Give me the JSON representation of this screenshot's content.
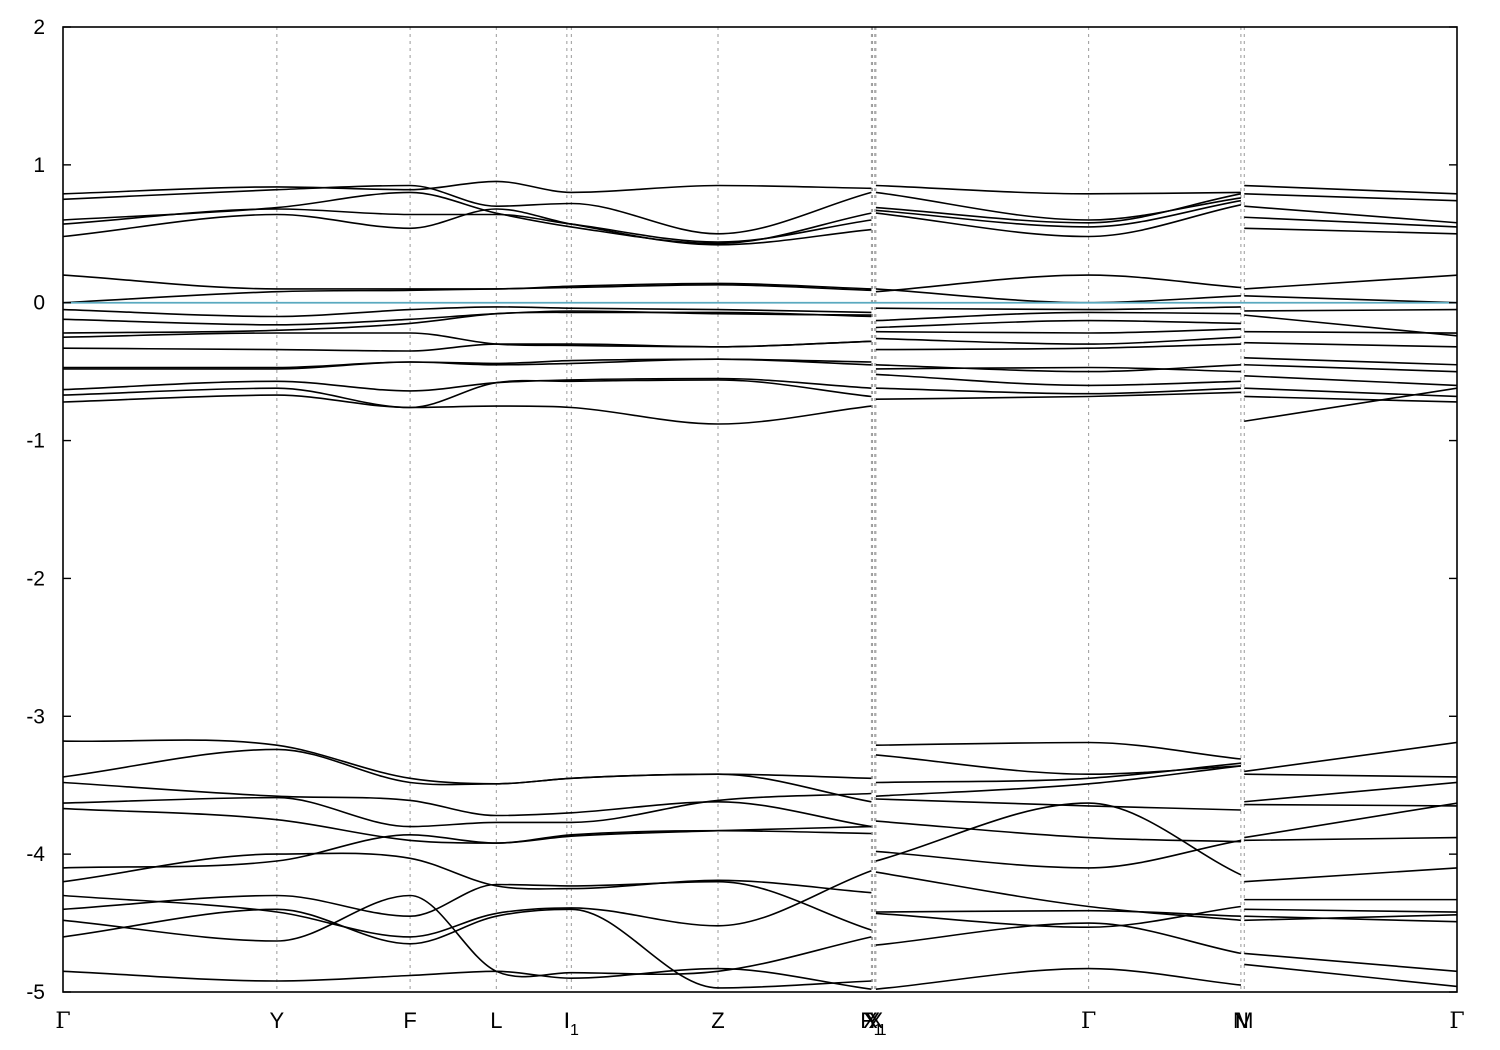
{
  "chart_data": {
    "type": "line",
    "title": "",
    "xlabel": "",
    "ylabel": "",
    "ylim": [
      -5,
      2
    ],
    "yticks": [
      2,
      1,
      0,
      -1,
      -2,
      -3,
      -4,
      -5
    ],
    "xlim": [
      0,
      12.45
    ],
    "grid": "vertical dashed lines at high-symmetry points",
    "fermi_level": 0,
    "colors": {
      "bands": "#000000",
      "fermi": "#5aa9bf",
      "grid": "#9a9a9a"
    },
    "kpoints": [
      {
        "label": "Γ",
        "sub": "",
        "x": 0.0
      },
      {
        "label": "Y",
        "sub": "",
        "x": 1.91
      },
      {
        "label": "F",
        "sub": "",
        "x": 3.1
      },
      {
        "label": "L",
        "sub": "",
        "x": 3.87
      },
      {
        "label": "I",
        "sub": "",
        "x": 4.5
      },
      {
        "label": "I",
        "sub": "1",
        "x": 4.54
      },
      {
        "label": "Z",
        "sub": "",
        "x": 5.85
      },
      {
        "label": "F",
        "sub": "1",
        "x": 7.22
      },
      {
        "label": "Y",
        "sub": "",
        "x": 7.23
      },
      {
        "label": "X",
        "sub": "1",
        "x": 7.25
      },
      {
        "label": "X",
        "sub": "",
        "x": 7.26
      },
      {
        "label": "Γ",
        "sub": "",
        "x": 9.16
      },
      {
        "label": "N",
        "sub": "",
        "x": 10.52
      },
      {
        "label": "M",
        "sub": "",
        "x": 10.55
      },
      {
        "label": "Γ",
        "sub": "",
        "x": 12.45
      }
    ],
    "segments": [
      {
        "x": [
          0,
          1.91,
          3.1,
          3.87,
          4.54,
          5.85,
          7.22
        ],
        "bands": [
          [
            0.79,
            0.84,
            0.82,
            0.88,
            0.8,
            0.85,
            0.83
          ],
          [
            0.75,
            0.82,
            0.85,
            0.7,
            0.72,
            0.5,
            0.8
          ],
          [
            0.6,
            0.69,
            0.8,
            0.65,
            0.55,
            0.43,
            0.65
          ],
          [
            0.57,
            0.68,
            0.64,
            0.64,
            0.57,
            0.44,
            0.6
          ],
          [
            0.48,
            0.64,
            0.54,
            0.68,
            0.57,
            0.42,
            0.53
          ],
          [
            0.2,
            0.1,
            0.1,
            0.1,
            0.12,
            0.14,
            0.1
          ],
          [
            0.0,
            0.08,
            0.09,
            0.1,
            0.11,
            0.13,
            0.09
          ],
          [
            -0.05,
            -0.1,
            -0.05,
            -0.03,
            -0.04,
            -0.05,
            -0.07
          ],
          [
            -0.12,
            -0.16,
            -0.12,
            -0.08,
            -0.06,
            -0.08,
            -0.09
          ],
          [
            -0.22,
            -0.2,
            -0.15,
            -0.08,
            -0.07,
            -0.07,
            -0.1
          ],
          [
            -0.25,
            -0.22,
            -0.22,
            -0.3,
            -0.31,
            -0.32,
            -0.28
          ],
          [
            -0.33,
            -0.34,
            -0.35,
            -0.3,
            -0.3,
            -0.32,
            -0.28
          ],
          [
            -0.47,
            -0.47,
            -0.43,
            -0.44,
            -0.42,
            -0.41,
            -0.43
          ],
          [
            -0.48,
            -0.48,
            -0.43,
            -0.45,
            -0.44,
            -0.41,
            -0.45
          ],
          [
            -0.63,
            -0.57,
            -0.64,
            -0.58,
            -0.56,
            -0.55,
            -0.62
          ],
          [
            -0.67,
            -0.62,
            -0.76,
            -0.58,
            -0.57,
            -0.56,
            -0.68
          ],
          [
            -0.72,
            -0.67,
            -0.76,
            -0.75,
            -0.76,
            -0.88,
            -0.75
          ],
          [
            -3.18,
            -3.21,
            -3.45,
            -3.49,
            -3.45,
            -3.42,
            -3.45
          ],
          [
            -3.44,
            -3.24,
            -3.48,
            -3.49,
            -3.45,
            -3.42,
            -3.62
          ],
          [
            -3.48,
            -3.58,
            -3.61,
            -3.72,
            -3.7,
            -3.62,
            -3.8
          ],
          [
            -3.63,
            -3.59,
            -3.8,
            -3.77,
            -3.77,
            -3.61,
            -3.56
          ],
          [
            -3.67,
            -3.75,
            -3.9,
            -3.92,
            -3.86,
            -3.83,
            -3.85
          ],
          [
            -4.1,
            -4.05,
            -3.86,
            -3.92,
            -3.87,
            -3.83,
            -3.8
          ],
          [
            -4.2,
            -4.0,
            -4.03,
            -4.23,
            -4.25,
            -4.19,
            -4.28
          ],
          [
            -4.3,
            -4.42,
            -4.6,
            -4.43,
            -4.39,
            -4.52,
            -4.12
          ],
          [
            -4.4,
            -4.3,
            -4.45,
            -4.22,
            -4.23,
            -4.2,
            -4.55
          ],
          [
            -4.48,
            -4.63,
            -4.3,
            -4.85,
            -4.86,
            -4.85,
            -4.6
          ],
          [
            -4.6,
            -4.4,
            -4.65,
            -4.45,
            -4.4,
            -4.97,
            -4.92
          ],
          [
            -4.85,
            -4.92,
            -4.88,
            -4.85,
            -4.9,
            -4.83,
            -4.98
          ]
        ]
      },
      {
        "x": [
          7.26,
          9.16,
          10.52
        ],
        "bands": [
          [
            0.85,
            0.79,
            0.8
          ],
          [
            0.8,
            0.6,
            0.76
          ],
          [
            0.69,
            0.58,
            0.79
          ],
          [
            0.67,
            0.55,
            0.74
          ],
          [
            0.65,
            0.48,
            0.71
          ],
          [
            0.08,
            0.2,
            0.11
          ],
          [
            0.1,
            0.0,
            0.05
          ],
          [
            -0.04,
            -0.05,
            -0.03
          ],
          [
            -0.13,
            -0.07,
            -0.08
          ],
          [
            -0.18,
            -0.13,
            -0.15
          ],
          [
            -0.21,
            -0.22,
            -0.19
          ],
          [
            -0.26,
            -0.3,
            -0.25
          ],
          [
            -0.34,
            -0.33,
            -0.3
          ],
          [
            -0.45,
            -0.5,
            -0.45
          ],
          [
            -0.48,
            -0.47,
            -0.5
          ],
          [
            -0.52,
            -0.6,
            -0.57
          ],
          [
            -0.62,
            -0.66,
            -0.62
          ],
          [
            -0.7,
            -0.68,
            -0.65
          ],
          [
            -3.21,
            -3.19,
            -3.31
          ],
          [
            -3.28,
            -3.42,
            -3.36
          ],
          [
            -3.48,
            -3.45,
            -3.34
          ],
          [
            -3.58,
            -3.49,
            -3.36
          ],
          [
            -3.6,
            -3.65,
            -3.68
          ],
          [
            -3.76,
            -3.88,
            -3.91
          ],
          [
            -3.98,
            -4.1,
            -3.9
          ],
          [
            -4.05,
            -3.63,
            -4.15
          ],
          [
            -4.13,
            -4.38,
            -4.48
          ],
          [
            -4.42,
            -4.41,
            -4.45
          ],
          [
            -4.43,
            -4.53,
            -4.38
          ],
          [
            -4.66,
            -4.5,
            -4.72
          ],
          [
            -4.98,
            -4.83,
            -4.95
          ]
        ]
      },
      {
        "x": [
          10.55,
          12.45
        ],
        "bands": [
          [
            0.85,
            0.79
          ],
          [
            0.79,
            0.74
          ],
          [
            0.7,
            0.58
          ],
          [
            0.62,
            0.55
          ],
          [
            0.54,
            0.5
          ],
          [
            0.1,
            0.2
          ],
          [
            0.05,
            0.0
          ],
          [
            -0.06,
            -0.05
          ],
          [
            -0.09,
            -0.24
          ],
          [
            -0.21,
            -0.22
          ],
          [
            -0.29,
            -0.32
          ],
          [
            -0.4,
            -0.45
          ],
          [
            -0.45,
            -0.5
          ],
          [
            -0.53,
            -0.6
          ],
          [
            -0.62,
            -0.68
          ],
          [
            -0.68,
            -0.72
          ],
          [
            -0.86,
            -0.62
          ],
          [
            -3.4,
            -3.19
          ],
          [
            -3.42,
            -3.44
          ],
          [
            -3.62,
            -3.48
          ],
          [
            -3.64,
            -3.65
          ],
          [
            -3.88,
            -3.63
          ],
          [
            -3.9,
            -3.88
          ],
          [
            -4.2,
            -4.1
          ],
          [
            -4.33,
            -4.33
          ],
          [
            -4.4,
            -4.42
          ],
          [
            -4.45,
            -4.49
          ],
          [
            -4.48,
            -4.44
          ],
          [
            -4.72,
            -4.85
          ],
          [
            -4.8,
            -4.96
          ]
        ]
      }
    ]
  }
}
